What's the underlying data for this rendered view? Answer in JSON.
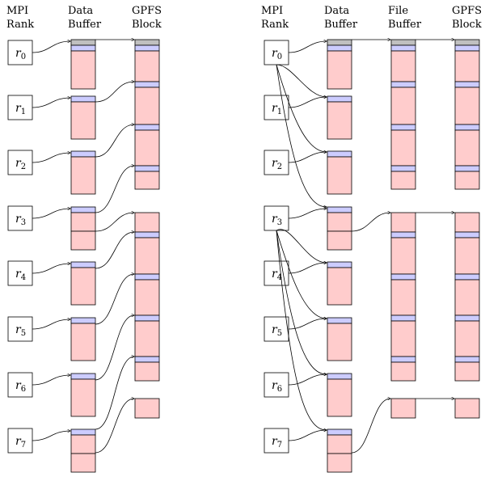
{
  "colors": {
    "data": "#ffcccc",
    "header": "#ccccff",
    "meta": "#c0c0c0",
    "stroke": "#000000"
  },
  "left_diagram": {
    "headers": {
      "rank": [
        "MPI",
        "Rank"
      ],
      "buffer": [
        "Data",
        "Buffer"
      ],
      "block": [
        "GPFS",
        "Block"
      ]
    }
  },
  "right_diagram": {
    "headers": {
      "rank": [
        "MPI",
        "Rank"
      ],
      "buffer": [
        "Data",
        "Buffer"
      ],
      "file_buffer": [
        "File",
        "Buffer"
      ],
      "block": [
        "GPFS",
        "Block"
      ]
    }
  },
  "ranks": [
    {
      "letter": "r",
      "sub": "0"
    },
    {
      "letter": "r",
      "sub": "1"
    },
    {
      "letter": "r",
      "sub": "2"
    },
    {
      "letter": "r",
      "sub": "3"
    },
    {
      "letter": "r",
      "sub": "4"
    },
    {
      "letter": "r",
      "sub": "5"
    },
    {
      "letter": "r",
      "sub": "6"
    },
    {
      "letter": "r",
      "sub": "7"
    }
  ]
}
